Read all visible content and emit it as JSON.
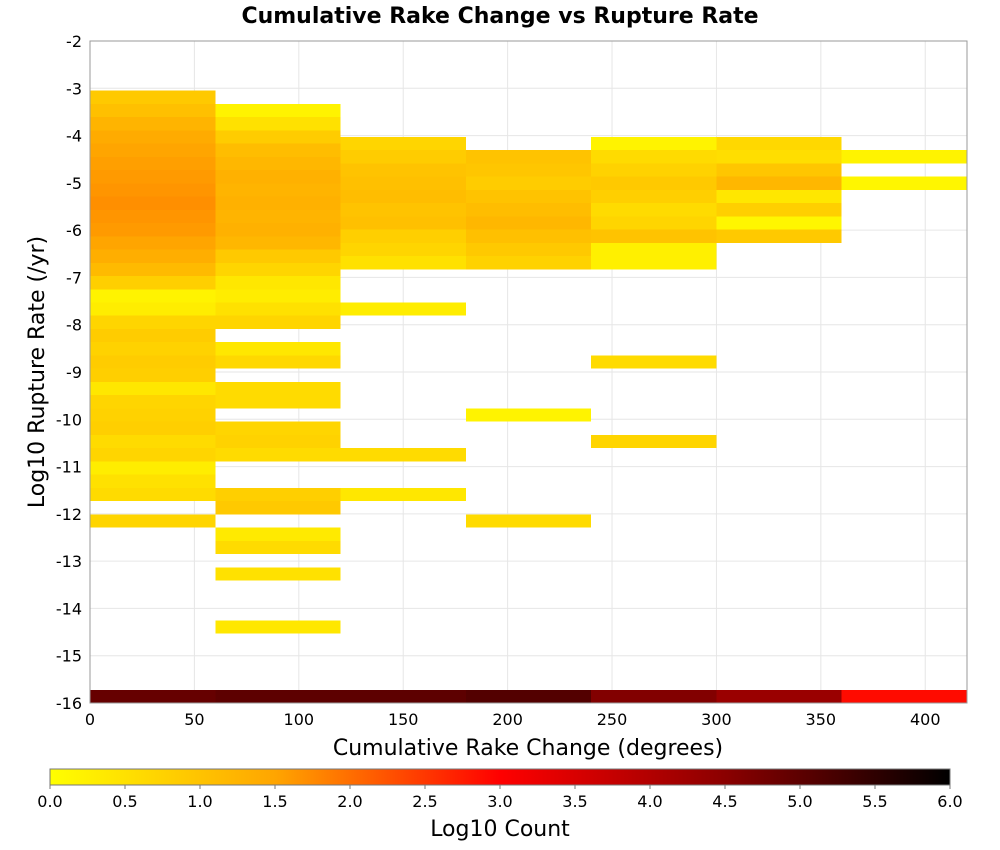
{
  "chart_data": {
    "type": "heatmap",
    "title": "Cumulative Rake Change vs Rupture Rate",
    "xlabel": "Cumulative Rake Change (degrees)",
    "ylabel": "Log10 Rupture Rate (/yr)",
    "xlim": [
      0,
      420
    ],
    "ylim": [
      -16,
      -2
    ],
    "x_ticks": [
      0,
      50,
      100,
      150,
      200,
      250,
      300,
      350,
      400
    ],
    "y_ticks": [
      -2,
      -3,
      -4,
      -5,
      -6,
      -7,
      -8,
      -9,
      -10,
      -11,
      -12,
      -13,
      -14,
      -15,
      -16
    ],
    "grid": true,
    "x_bin_width": 60,
    "y_bin_height": 0.28,
    "colorbar": {
      "label": "Log10 Count",
      "range": [
        0,
        6
      ],
      "ticks": [
        "0.0",
        "0.5",
        "1.0",
        "1.5",
        "2.0",
        "2.5",
        "3.0",
        "3.5",
        "4.0",
        "4.5",
        "5.0",
        "5.5",
        "6.0"
      ],
      "colors": [
        "#ffff00",
        "#ffa500",
        "#ff0000",
        "#8b0000",
        "#000000"
      ]
    },
    "columns": [
      {
        "x": 0,
        "cells": [
          [
            -3.33,
            0.9
          ],
          [
            -3.61,
            1.05
          ],
          [
            -3.89,
            1.25
          ],
          [
            -4.17,
            1.4
          ],
          [
            -4.45,
            1.5
          ],
          [
            -4.73,
            1.55
          ],
          [
            -5.01,
            1.6
          ],
          [
            -5.29,
            1.65
          ],
          [
            -5.57,
            1.7
          ],
          [
            -5.85,
            1.65
          ],
          [
            -6.13,
            1.6
          ],
          [
            -6.41,
            1.5
          ],
          [
            -6.69,
            1.35
          ],
          [
            -6.97,
            1.15
          ],
          [
            -7.25,
            0.8
          ],
          [
            -7.53,
            0.2
          ],
          [
            -7.81,
            0.3
          ],
          [
            -8.09,
            0.7
          ],
          [
            -8.37,
            0.85
          ],
          [
            -8.65,
            0.75
          ],
          [
            -8.93,
            0.85
          ],
          [
            -9.21,
            0.8
          ],
          [
            -9.49,
            0.4
          ],
          [
            -9.77,
            0.7
          ],
          [
            -10.05,
            0.75
          ],
          [
            -10.33,
            0.8
          ],
          [
            -10.61,
            0.6
          ],
          [
            -10.89,
            0.7
          ],
          [
            -11.17,
            0.3
          ],
          [
            -11.45,
            0.5
          ],
          [
            -11.73,
            0.6
          ],
          [
            -12.29,
            0.7
          ],
          [
            -16.0,
            4.9
          ]
        ]
      },
      {
        "x": 60,
        "cells": [
          [
            -3.61,
            0.2
          ],
          [
            -3.89,
            0.5
          ],
          [
            -4.17,
            0.85
          ],
          [
            -4.45,
            1.1
          ],
          [
            -4.73,
            1.2
          ],
          [
            -5.01,
            1.3
          ],
          [
            -5.29,
            1.25
          ],
          [
            -5.57,
            1.3
          ],
          [
            -5.85,
            1.25
          ],
          [
            -6.13,
            1.3
          ],
          [
            -6.41,
            1.2
          ],
          [
            -6.69,
            0.9
          ],
          [
            -6.97,
            0.7
          ],
          [
            -7.25,
            0.4
          ],
          [
            -7.53,
            0.3
          ],
          [
            -7.81,
            0.5
          ],
          [
            -8.09,
            0.7
          ],
          [
            -8.65,
            0.4
          ],
          [
            -8.93,
            0.65
          ],
          [
            -9.49,
            0.6
          ],
          [
            -9.77,
            0.6
          ],
          [
            -10.33,
            0.7
          ],
          [
            -10.61,
            0.75
          ],
          [
            -10.89,
            0.6
          ],
          [
            -11.73,
            0.8
          ],
          [
            -12.01,
            0.9
          ],
          [
            -12.57,
            0.35
          ],
          [
            -12.85,
            0.6
          ],
          [
            -13.41,
            0.5
          ],
          [
            -14.53,
            0.4
          ],
          [
            -16.0,
            5.0
          ]
        ]
      },
      {
        "x": 120,
        "cells": [
          [
            -4.31,
            0.7
          ],
          [
            -4.59,
            0.85
          ],
          [
            -4.87,
            1.0
          ],
          [
            -5.15,
            1.05
          ],
          [
            -5.43,
            1.1
          ],
          [
            -5.71,
            1.0
          ],
          [
            -5.99,
            1.05
          ],
          [
            -6.27,
            0.8
          ],
          [
            -6.55,
            0.7
          ],
          [
            -6.83,
            0.5
          ],
          [
            -7.81,
            0.3
          ],
          [
            -10.89,
            0.6
          ],
          [
            -11.73,
            0.4
          ],
          [
            -16.0,
            5.0
          ]
        ]
      },
      {
        "x": 180,
        "cells": [
          [
            -4.59,
            1.0
          ],
          [
            -4.87,
            0.95
          ],
          [
            -5.15,
            0.85
          ],
          [
            -5.43,
            1.0
          ],
          [
            -5.71,
            1.1
          ],
          [
            -5.99,
            1.2
          ],
          [
            -6.27,
            1.05
          ],
          [
            -6.55,
            0.9
          ],
          [
            -6.83,
            0.75
          ],
          [
            -10.05,
            0.2
          ],
          [
            -12.29,
            0.6
          ],
          [
            -16.0,
            5.1
          ]
        ]
      },
      {
        "x": 240,
        "cells": [
          [
            -4.31,
            0.2
          ],
          [
            -4.59,
            0.6
          ],
          [
            -4.87,
            0.75
          ],
          [
            -5.15,
            0.9
          ],
          [
            -5.43,
            0.8
          ],
          [
            -5.71,
            0.6
          ],
          [
            -5.99,
            0.7
          ],
          [
            -6.27,
            1.0
          ],
          [
            -6.55,
            0.25
          ],
          [
            -6.83,
            0.25
          ],
          [
            -8.93,
            0.6
          ],
          [
            -10.61,
            0.7
          ],
          [
            -16.0,
            4.6
          ]
        ]
      },
      {
        "x": 300,
        "cells": [
          [
            -4.31,
            0.65
          ],
          [
            -4.59,
            0.55
          ],
          [
            -4.87,
            0.95
          ],
          [
            -5.15,
            1.2
          ],
          [
            -5.43,
            0.4
          ],
          [
            -5.71,
            0.8
          ],
          [
            -5.99,
            0.15
          ],
          [
            -6.27,
            0.9
          ],
          [
            -16.0,
            4.3
          ]
        ]
      },
      {
        "x": 360,
        "cells": [
          [
            -4.59,
            0.2
          ],
          [
            -5.15,
            0.15
          ],
          [
            -16.0,
            2.9
          ]
        ]
      }
    ]
  }
}
